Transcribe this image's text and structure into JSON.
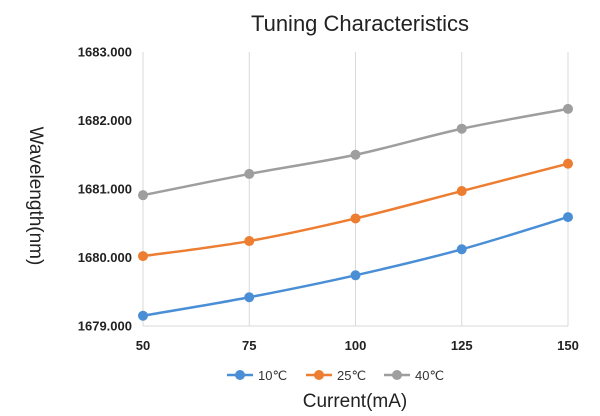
{
  "chart_data": {
    "type": "line",
    "title": "Tuning Characteristics",
    "xlabel": "Current(mA)",
    "ylabel": "Wavelength(nm)",
    "x": [
      50,
      75,
      100,
      125,
      150
    ],
    "x_tick_labels": [
      "50",
      "75",
      "100",
      "125",
      "150"
    ],
    "ylim": [
      1679.0,
      1683.0
    ],
    "y_ticks": [
      1679.0,
      1680.0,
      1681.0,
      1682.0,
      1683.0
    ],
    "y_tick_labels": [
      "1679.000",
      "1680.000",
      "1681.000",
      "1682.000",
      "1683.000"
    ],
    "grid": "vertical",
    "legend_position": "bottom",
    "series": [
      {
        "name": "10℃",
        "color": "#4a8fd6",
        "values": [
          1679.15,
          1679.42,
          1679.74,
          1680.12,
          1680.59
        ]
      },
      {
        "name": "25℃",
        "color": "#ed7d31",
        "values": [
          1680.02,
          1680.24,
          1680.57,
          1680.97,
          1681.37
        ]
      },
      {
        "name": "40℃",
        "color": "#9e9e9e",
        "values": [
          1680.91,
          1681.22,
          1681.5,
          1681.88,
          1682.17
        ]
      }
    ]
  }
}
